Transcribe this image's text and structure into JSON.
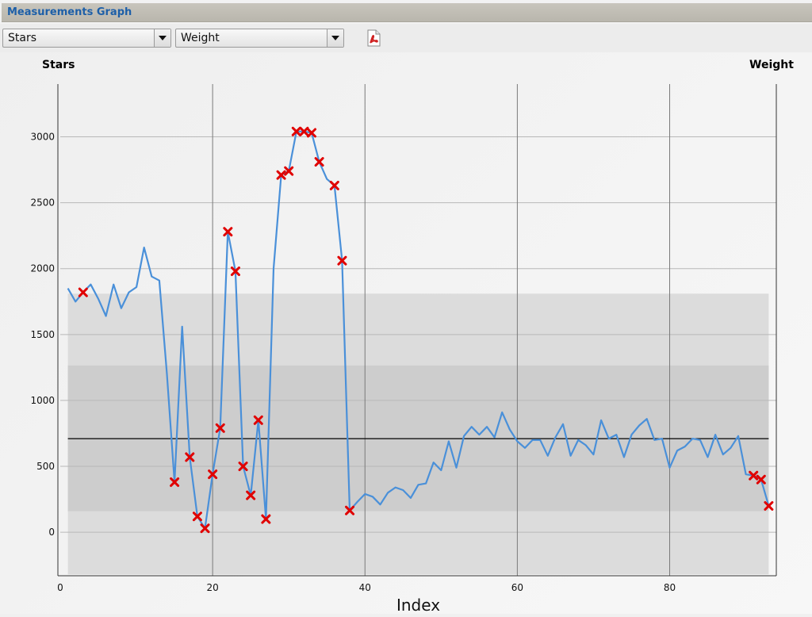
{
  "window": {
    "title": "Measurements Graph"
  },
  "toolbar": {
    "left_select": "Stars",
    "right_select": "Weight",
    "pdf_icon": "pdf-export-icon"
  },
  "colors": {
    "line": "#4a90d9",
    "marker": "#e00000",
    "mean_line": "#000000",
    "band_outer": "#dcdcdc",
    "band_inner": "#cdcdcd"
  },
  "chart_data": {
    "type": "line",
    "left_axis_title": "Stars",
    "right_axis_title": "Weight",
    "xlabel": "Index",
    "xlim": [
      0,
      94
    ],
    "ylim": [
      -330,
      3400
    ],
    "xticks": [
      0,
      20,
      40,
      60,
      80
    ],
    "yticks": [
      0,
      500,
      1000,
      1500,
      2000,
      2500,
      3000
    ],
    "grid": true,
    "mean": 710,
    "bands": [
      {
        "from": -320,
        "to": 1810
      },
      {
        "from": 160,
        "to": 1265
      }
    ],
    "band_x": [
      1,
      93
    ],
    "x": [
      1,
      2,
      3,
      4,
      5,
      6,
      7,
      8,
      9,
      10,
      11,
      12,
      13,
      14,
      15,
      16,
      17,
      18,
      19,
      20,
      21,
      22,
      23,
      24,
      25,
      26,
      27,
      28,
      29,
      30,
      31,
      32,
      33,
      34,
      35,
      36,
      37,
      38,
      39,
      40,
      41,
      42,
      43,
      44,
      45,
      46,
      47,
      48,
      49,
      50,
      51,
      52,
      53,
      54,
      55,
      56,
      57,
      58,
      59,
      60,
      61,
      62,
      63,
      64,
      65,
      66,
      67,
      68,
      69,
      70,
      71,
      72,
      73,
      74,
      75,
      76,
      77,
      78,
      79,
      80,
      81,
      82,
      83,
      84,
      85,
      86,
      87,
      88,
      89,
      90,
      91,
      92,
      93
    ],
    "values": [
      1850,
      1750,
      1820,
      1880,
      1770,
      1640,
      1880,
      1700,
      1820,
      1860,
      2160,
      1940,
      1910,
      1200,
      380,
      1560,
      570,
      120,
      30,
      440,
      790,
      2280,
      1980,
      500,
      280,
      850,
      100,
      2000,
      2710,
      2740,
      3040,
      3040,
      3030,
      2810,
      2680,
      2630,
      2060,
      165,
      230,
      290,
      270,
      210,
      300,
      340,
      320,
      260,
      360,
      370,
      530,
      470,
      690,
      490,
      730,
      800,
      740,
      800,
      720,
      910,
      780,
      690,
      640,
      700,
      700,
      580,
      720,
      820,
      580,
      700,
      660,
      590,
      850,
      710,
      740,
      570,
      740,
      810,
      860,
      700,
      710,
      490,
      620,
      650,
      710,
      700,
      570,
      740,
      590,
      640,
      730,
      440,
      430,
      400,
      200
    ],
    "flagged_indices": [
      3,
      15,
      17,
      18,
      19,
      20,
      21,
      22,
      23,
      24,
      25,
      26,
      27,
      29,
      30,
      31,
      32,
      33,
      34,
      36,
      37,
      38,
      91,
      92,
      93
    ]
  }
}
